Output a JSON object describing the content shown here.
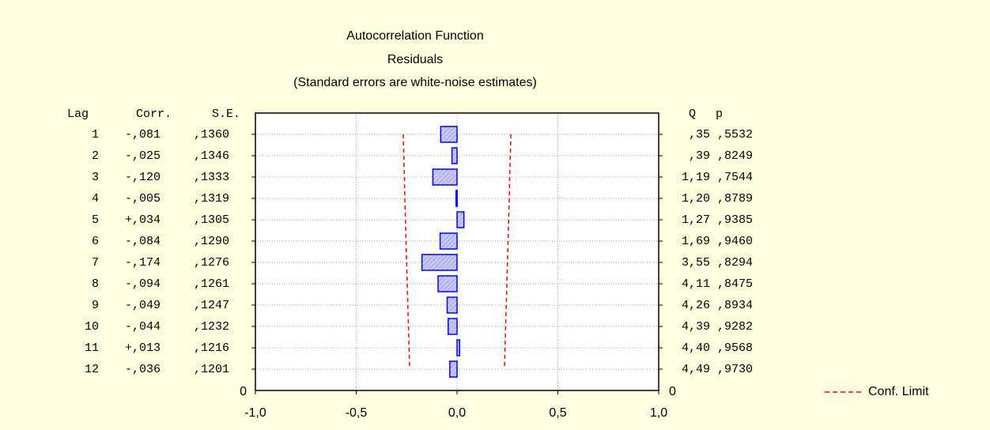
{
  "chart_data": {
    "type": "bar",
    "orientation": "horizontal",
    "title": "Autocorrelation Function",
    "subtitle": "Residuals",
    "note": "(Standard errors are white-noise estimates)",
    "columns": {
      "lag": "Lag",
      "corr": "Corr.",
      "se": "S.E.",
      "q": "Q",
      "p": "p"
    },
    "categories": [
      "1",
      "2",
      "3",
      "4",
      "5",
      "6",
      "7",
      "8",
      "9",
      "10",
      "11",
      "12"
    ],
    "series": [
      {
        "name": "Corr.",
        "color": "#0000ff",
        "values": [
          -0.081,
          -0.025,
          -0.12,
          -0.005,
          0.034,
          -0.084,
          -0.174,
          -0.094,
          -0.049,
          -0.044,
          0.013,
          -0.036
        ],
        "value_labels": [
          "-,081",
          "-,025",
          "-,120",
          "-,005",
          "+,034",
          "-,084",
          "-,174",
          "-,094",
          "-,049",
          "-,044",
          "+,013",
          "-,036"
        ]
      },
      {
        "name": "Conf. Limit",
        "color": "#ff0000",
        "values": [
          0.267,
          0.264,
          0.261,
          0.259,
          0.256,
          0.253,
          0.25,
          0.247,
          0.244,
          0.241,
          0.238,
          0.235
        ]
      }
    ],
    "se": [
      ",1360",
      ",1346",
      ",1333",
      ",1319",
      ",1305",
      ",1290",
      ",1276",
      ",1261",
      ",1247",
      ",1232",
      ",1216",
      ",1201"
    ],
    "q": [
      ",35",
      ",39",
      "1,19",
      "1,20",
      "1,27",
      "1,69",
      "3,55",
      "4,11",
      "4,26",
      "4,39",
      "4,40",
      "4,49"
    ],
    "p": [
      ",5532",
      ",8249",
      ",7544",
      ",8789",
      ",9385",
      ",9460",
      ",8294",
      ",8475",
      ",8934",
      ",9282",
      ",9568",
      ",9730"
    ],
    "xlim": [
      -1,
      1
    ],
    "xticks": [
      {
        "value": -1,
        "label": "-1,0"
      },
      {
        "value": -0.5,
        "label": "-0,5"
      },
      {
        "value": 0,
        "label": "0,0"
      },
      {
        "value": 0.5,
        "label": "0,5"
      },
      {
        "value": 1,
        "label": "1,0"
      }
    ],
    "yticks": [
      0
    ],
    "grid": true,
    "legend": "bottom-right"
  }
}
